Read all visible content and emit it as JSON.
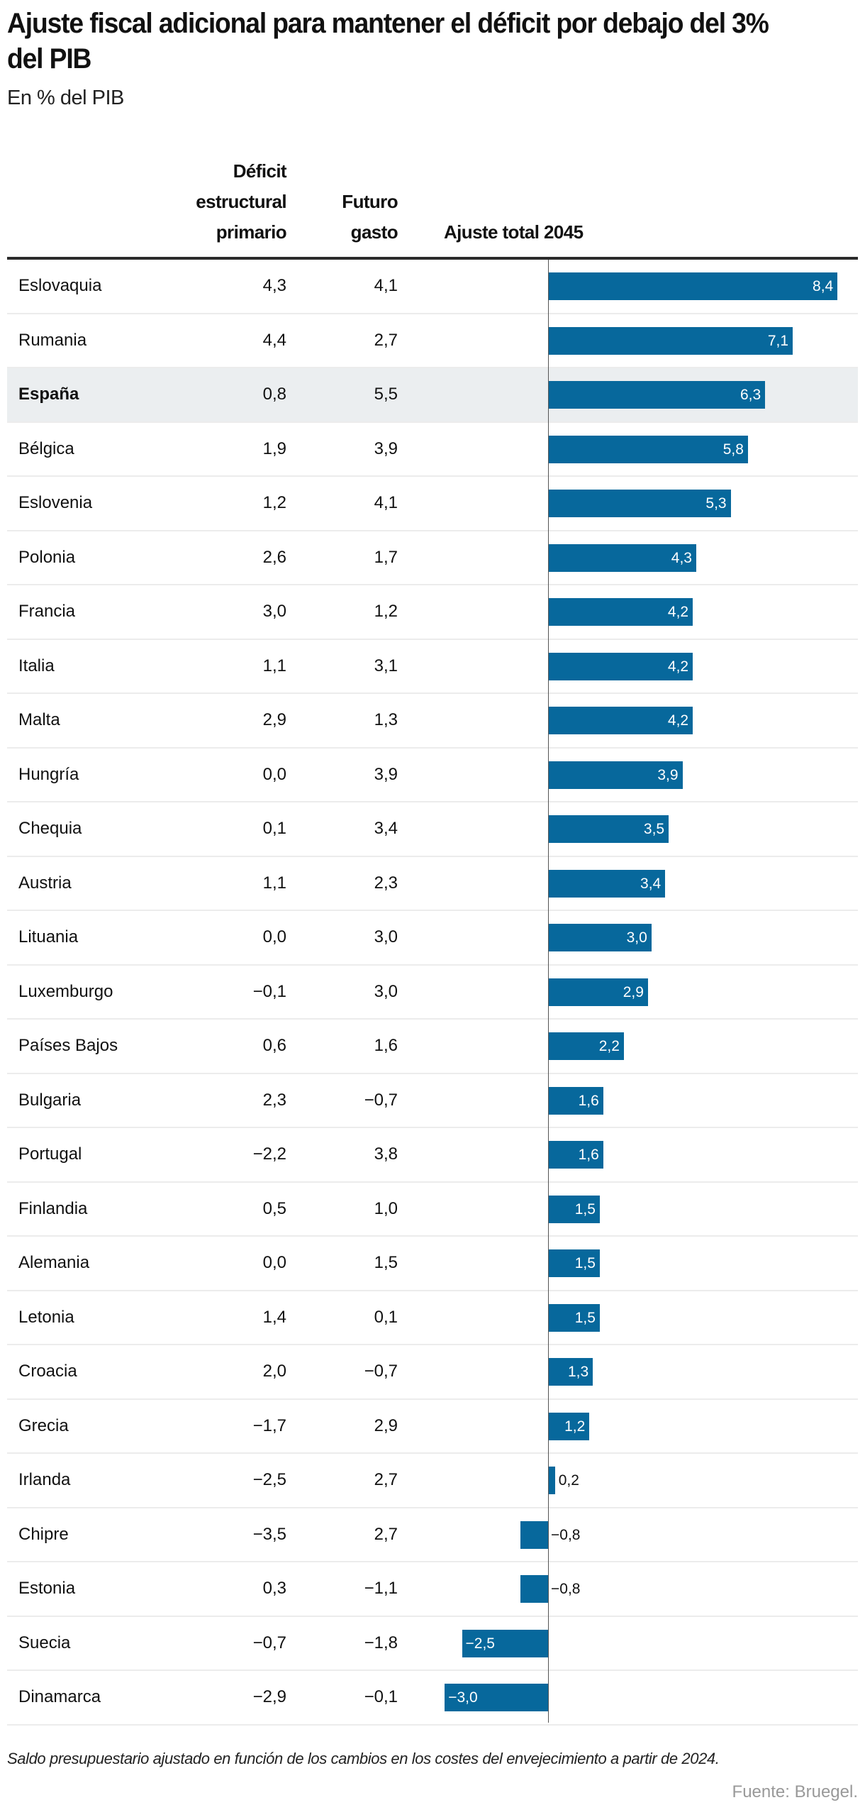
{
  "chart_data": {
    "type": "bar",
    "title": "Ajuste fiscal adicional para mantener el déficit por debajo del 3% del PIB",
    "subtitle": "En % del PIB",
    "columns": [
      "Déficit estructural primario",
      "Futuro gasto",
      "Ajuste total 2045"
    ],
    "column_headers": {
      "deficit": "Déficit estructural primario",
      "gasto": "Futuro gasto",
      "ajuste": "Ajuste total 2045"
    },
    "highlight": "España",
    "bar_color": "#07689c",
    "highlight_row_color": "#ebeef0",
    "rows": [
      {
        "country": "Eslovaquia",
        "deficit": "4,3",
        "gasto": "4,1",
        "ajuste": "8,4",
        "value": 8.4
      },
      {
        "country": "Rumania",
        "deficit": "4,4",
        "gasto": "2,7",
        "ajuste": "7,1",
        "value": 7.1
      },
      {
        "country": "España",
        "deficit": "0,8",
        "gasto": "5,5",
        "ajuste": "6,3",
        "value": 6.3
      },
      {
        "country": "Bélgica",
        "deficit": "1,9",
        "gasto": "3,9",
        "ajuste": "5,8",
        "value": 5.8
      },
      {
        "country": "Eslovenia",
        "deficit": "1,2",
        "gasto": "4,1",
        "ajuste": "5,3",
        "value": 5.3
      },
      {
        "country": "Polonia",
        "deficit": "2,6",
        "gasto": "1,7",
        "ajuste": "4,3",
        "value": 4.3
      },
      {
        "country": "Francia",
        "deficit": "3,0",
        "gasto": "1,2",
        "ajuste": "4,2",
        "value": 4.2
      },
      {
        "country": "Italia",
        "deficit": "1,1",
        "gasto": "3,1",
        "ajuste": "4,2",
        "value": 4.2
      },
      {
        "country": "Malta",
        "deficit": "2,9",
        "gasto": "1,3",
        "ajuste": "4,2",
        "value": 4.2
      },
      {
        "country": "Hungría",
        "deficit": "0,0",
        "gasto": "3,9",
        "ajuste": "3,9",
        "value": 3.9
      },
      {
        "country": "Chequia",
        "deficit": "0,1",
        "gasto": "3,4",
        "ajuste": "3,5",
        "value": 3.5
      },
      {
        "country": "Austria",
        "deficit": "1,1",
        "gasto": "2,3",
        "ajuste": "3,4",
        "value": 3.4
      },
      {
        "country": "Lituania",
        "deficit": "0,0",
        "gasto": "3,0",
        "ajuste": "3,0",
        "value": 3.0
      },
      {
        "country": "Luxemburgo",
        "deficit": "−0,1",
        "gasto": "3,0",
        "ajuste": "2,9",
        "value": 2.9
      },
      {
        "country": "Países Bajos",
        "deficit": "0,6",
        "gasto": "1,6",
        "ajuste": "2,2",
        "value": 2.2
      },
      {
        "country": "Bulgaria",
        "deficit": "2,3",
        "gasto": "−0,7",
        "ajuste": "1,6",
        "value": 1.6
      },
      {
        "country": "Portugal",
        "deficit": "−2,2",
        "gasto": "3,8",
        "ajuste": "1,6",
        "value": 1.6
      },
      {
        "country": "Finlandia",
        "deficit": "0,5",
        "gasto": "1,0",
        "ajuste": "1,5",
        "value": 1.5
      },
      {
        "country": "Alemania",
        "deficit": "0,0",
        "gasto": "1,5",
        "ajuste": "1,5",
        "value": 1.5
      },
      {
        "country": "Letonia",
        "deficit": "1,4",
        "gasto": "0,1",
        "ajuste": "1,5",
        "value": 1.5
      },
      {
        "country": "Croacia",
        "deficit": "2,0",
        "gasto": "−0,7",
        "ajuste": "1,3",
        "value": 1.3
      },
      {
        "country": "Grecia",
        "deficit": "−1,7",
        "gasto": "2,9",
        "ajuste": "1,2",
        "value": 1.2
      },
      {
        "country": "Irlanda",
        "deficit": "−2,5",
        "gasto": "2,7",
        "ajuste": "0,2",
        "value": 0.2
      },
      {
        "country": "Chipre",
        "deficit": "−3,5",
        "gasto": "2,7",
        "ajuste": "−0,8",
        "value": -0.8
      },
      {
        "country": "Estonia",
        "deficit": "0,3",
        "gasto": "−1,1",
        "ajuste": "−0,8",
        "value": -0.8
      },
      {
        "country": "Suecia",
        "deficit": "−0,7",
        "gasto": "−1,8",
        "ajuste": "−2,5",
        "value": -2.5
      },
      {
        "country": "Dinamarca",
        "deficit": "−2,9",
        "gasto": "−0,1",
        "ajuste": "−3,0",
        "value": -3.0
      }
    ],
    "xlim": [
      -3.0,
      8.4
    ],
    "note": "Saldo presupuestario ajustado en función de los cambios en los costes del envejecimiento a partir de 2024.",
    "source": "Fuente: Bruegel."
  }
}
